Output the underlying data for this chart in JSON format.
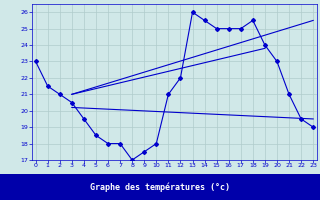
{
  "line1": {
    "x": [
      0,
      1,
      2,
      3,
      4,
      5,
      6,
      7,
      8,
      9,
      10,
      11,
      12,
      13,
      14,
      15,
      16,
      17,
      18,
      19,
      20,
      21,
      22,
      23
    ],
    "y": [
      23,
      21.5,
      21,
      20.5,
      19.5,
      18.5,
      18.0,
      18.0,
      17.0,
      17.5,
      18.0,
      21.0,
      22.0,
      26.0,
      25.5,
      25.0,
      25.0,
      25.0,
      25.5,
      24.0,
      23.0,
      21.0,
      19.5,
      19.0
    ]
  },
  "line2": {
    "x": [
      3,
      23
    ],
    "y": [
      21.0,
      25.5
    ]
  },
  "line3": {
    "x": [
      3,
      19
    ],
    "y": [
      21.0,
      23.8
    ]
  },
  "line4": {
    "x": [
      3,
      23
    ],
    "y": [
      20.2,
      19.5
    ]
  },
  "color": "#0000cc",
  "bg_color": "#d0e8e8",
  "grid_color": "#b0cccc",
  "xlim": [
    -0.3,
    23.3
  ],
  "ylim": [
    17,
    26.5
  ],
  "yticks": [
    17,
    18,
    19,
    20,
    21,
    22,
    23,
    24,
    25,
    26
  ],
  "xticks": [
    0,
    1,
    2,
    3,
    4,
    5,
    6,
    7,
    8,
    9,
    10,
    11,
    12,
    13,
    14,
    15,
    16,
    17,
    18,
    19,
    20,
    21,
    22,
    23
  ],
  "xlabel": "Graphe des températures (°c)",
  "footer_color": "#0000aa",
  "footer_text_color": "#ffffff"
}
